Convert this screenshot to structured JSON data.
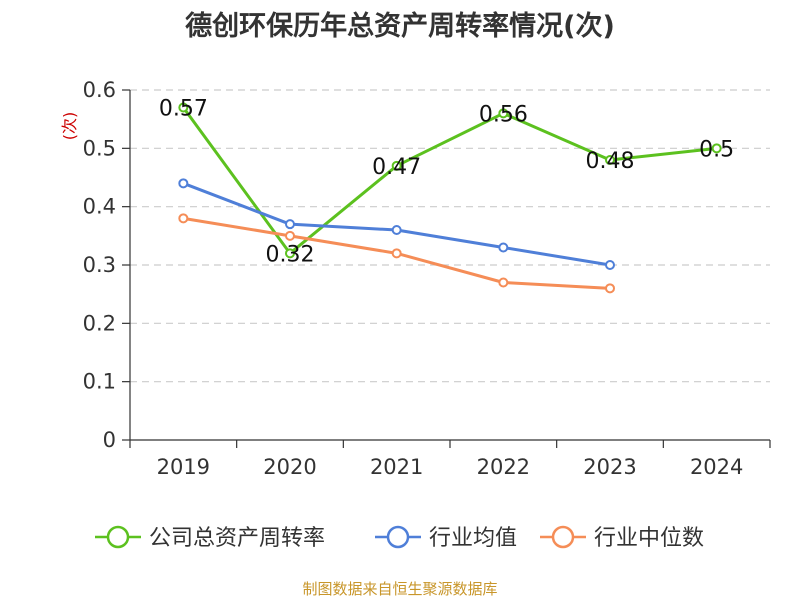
{
  "title": "德创环保历年总资产周转率情况(次)",
  "source": "制图数据来自恒生聚源数据库",
  "chart_data": {
    "type": "line",
    "title": "德创环保历年总资产周转率情况(次)",
    "ylabel": "(次)",
    "xlabel": "",
    "categories": [
      "2019",
      "2020",
      "2021",
      "2022",
      "2023",
      "2024"
    ],
    "ylim": [
      0,
      0.6
    ],
    "yticks": [
      "0",
      "0.1",
      "0.2",
      "0.3",
      "0.4",
      "0.5",
      "0.6"
    ],
    "yticks_values": [
      0,
      0.1,
      0.2,
      0.3,
      0.4,
      0.5,
      0.6
    ],
    "grid": true,
    "legend_position": "bottom",
    "series": [
      {
        "name": "公司总资产周转率",
        "color": "#5cc11f",
        "values": [
          0.57,
          0.32,
          0.47,
          0.56,
          0.48,
          0.5
        ],
        "labels": [
          "0.57",
          "0.32",
          "0.47",
          "0.56",
          "0.48",
          "0.5"
        ]
      },
      {
        "name": "行业均值",
        "color": "#4f7fd8",
        "values": [
          0.44,
          0.37,
          0.36,
          0.33,
          0.3,
          null
        ]
      },
      {
        "name": "行业中位数",
        "color": "#f58d57",
        "values": [
          0.38,
          0.35,
          0.32,
          0.27,
          0.26,
          null
        ]
      }
    ]
  }
}
